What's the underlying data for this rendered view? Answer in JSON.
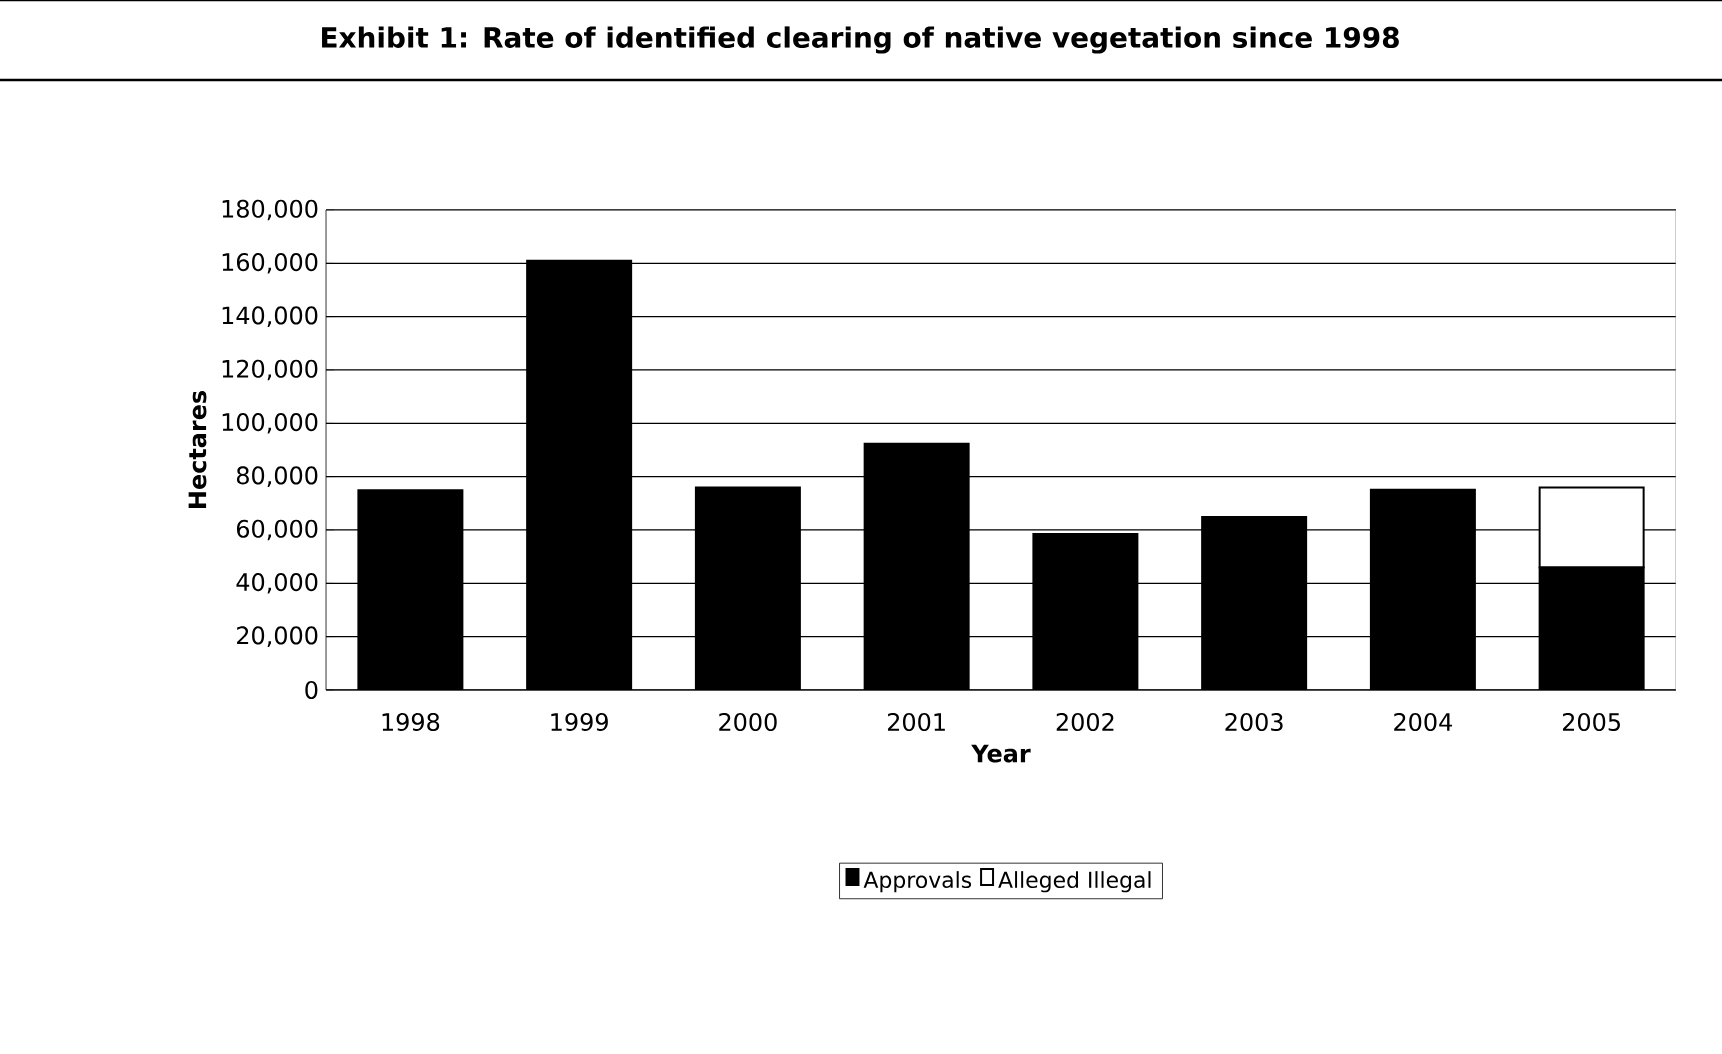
{
  "chart_data": {
    "type": "bar",
    "title": "Exhibit 1: Rate of identified clearing of native vegetation since 1998",
    "xlabel": "Year",
    "ylabel": "Hectares",
    "categories": [
      "1998",
      "1999",
      "2000",
      "2001",
      "2002",
      "2003",
      "2004",
      "2005"
    ],
    "stacked": true,
    "series": [
      {
        "name": "Approvals",
        "color": "#000000",
        "values": [
          74900,
          161000,
          75900,
          92300,
          58500,
          64900,
          75100,
          45900
        ]
      },
      {
        "name": "Alleged Illegal",
        "color": "#ffffff",
        "values": [
          null,
          null,
          null,
          null,
          null,
          null,
          null,
          30000
        ]
      }
    ],
    "ylim": [
      0,
      180000
    ],
    "yticks": [
      {
        "value": 0,
        "label": "0"
      },
      {
        "value": 20000,
        "label": "20,000"
      },
      {
        "value": 40000,
        "label": "40,000"
      },
      {
        "value": 60000,
        "label": "60,000"
      },
      {
        "value": 80000,
        "label": "80,000"
      },
      {
        "value": 100000,
        "label": "100,000"
      },
      {
        "value": 120000,
        "label": "120,000"
      },
      {
        "value": 140000,
        "label": "140,000"
      },
      {
        "value": 160000,
        "label": "160,000"
      },
      {
        "value": 180000,
        "label": "180,000"
      }
    ],
    "grid": "y",
    "legend": "bottom"
  }
}
